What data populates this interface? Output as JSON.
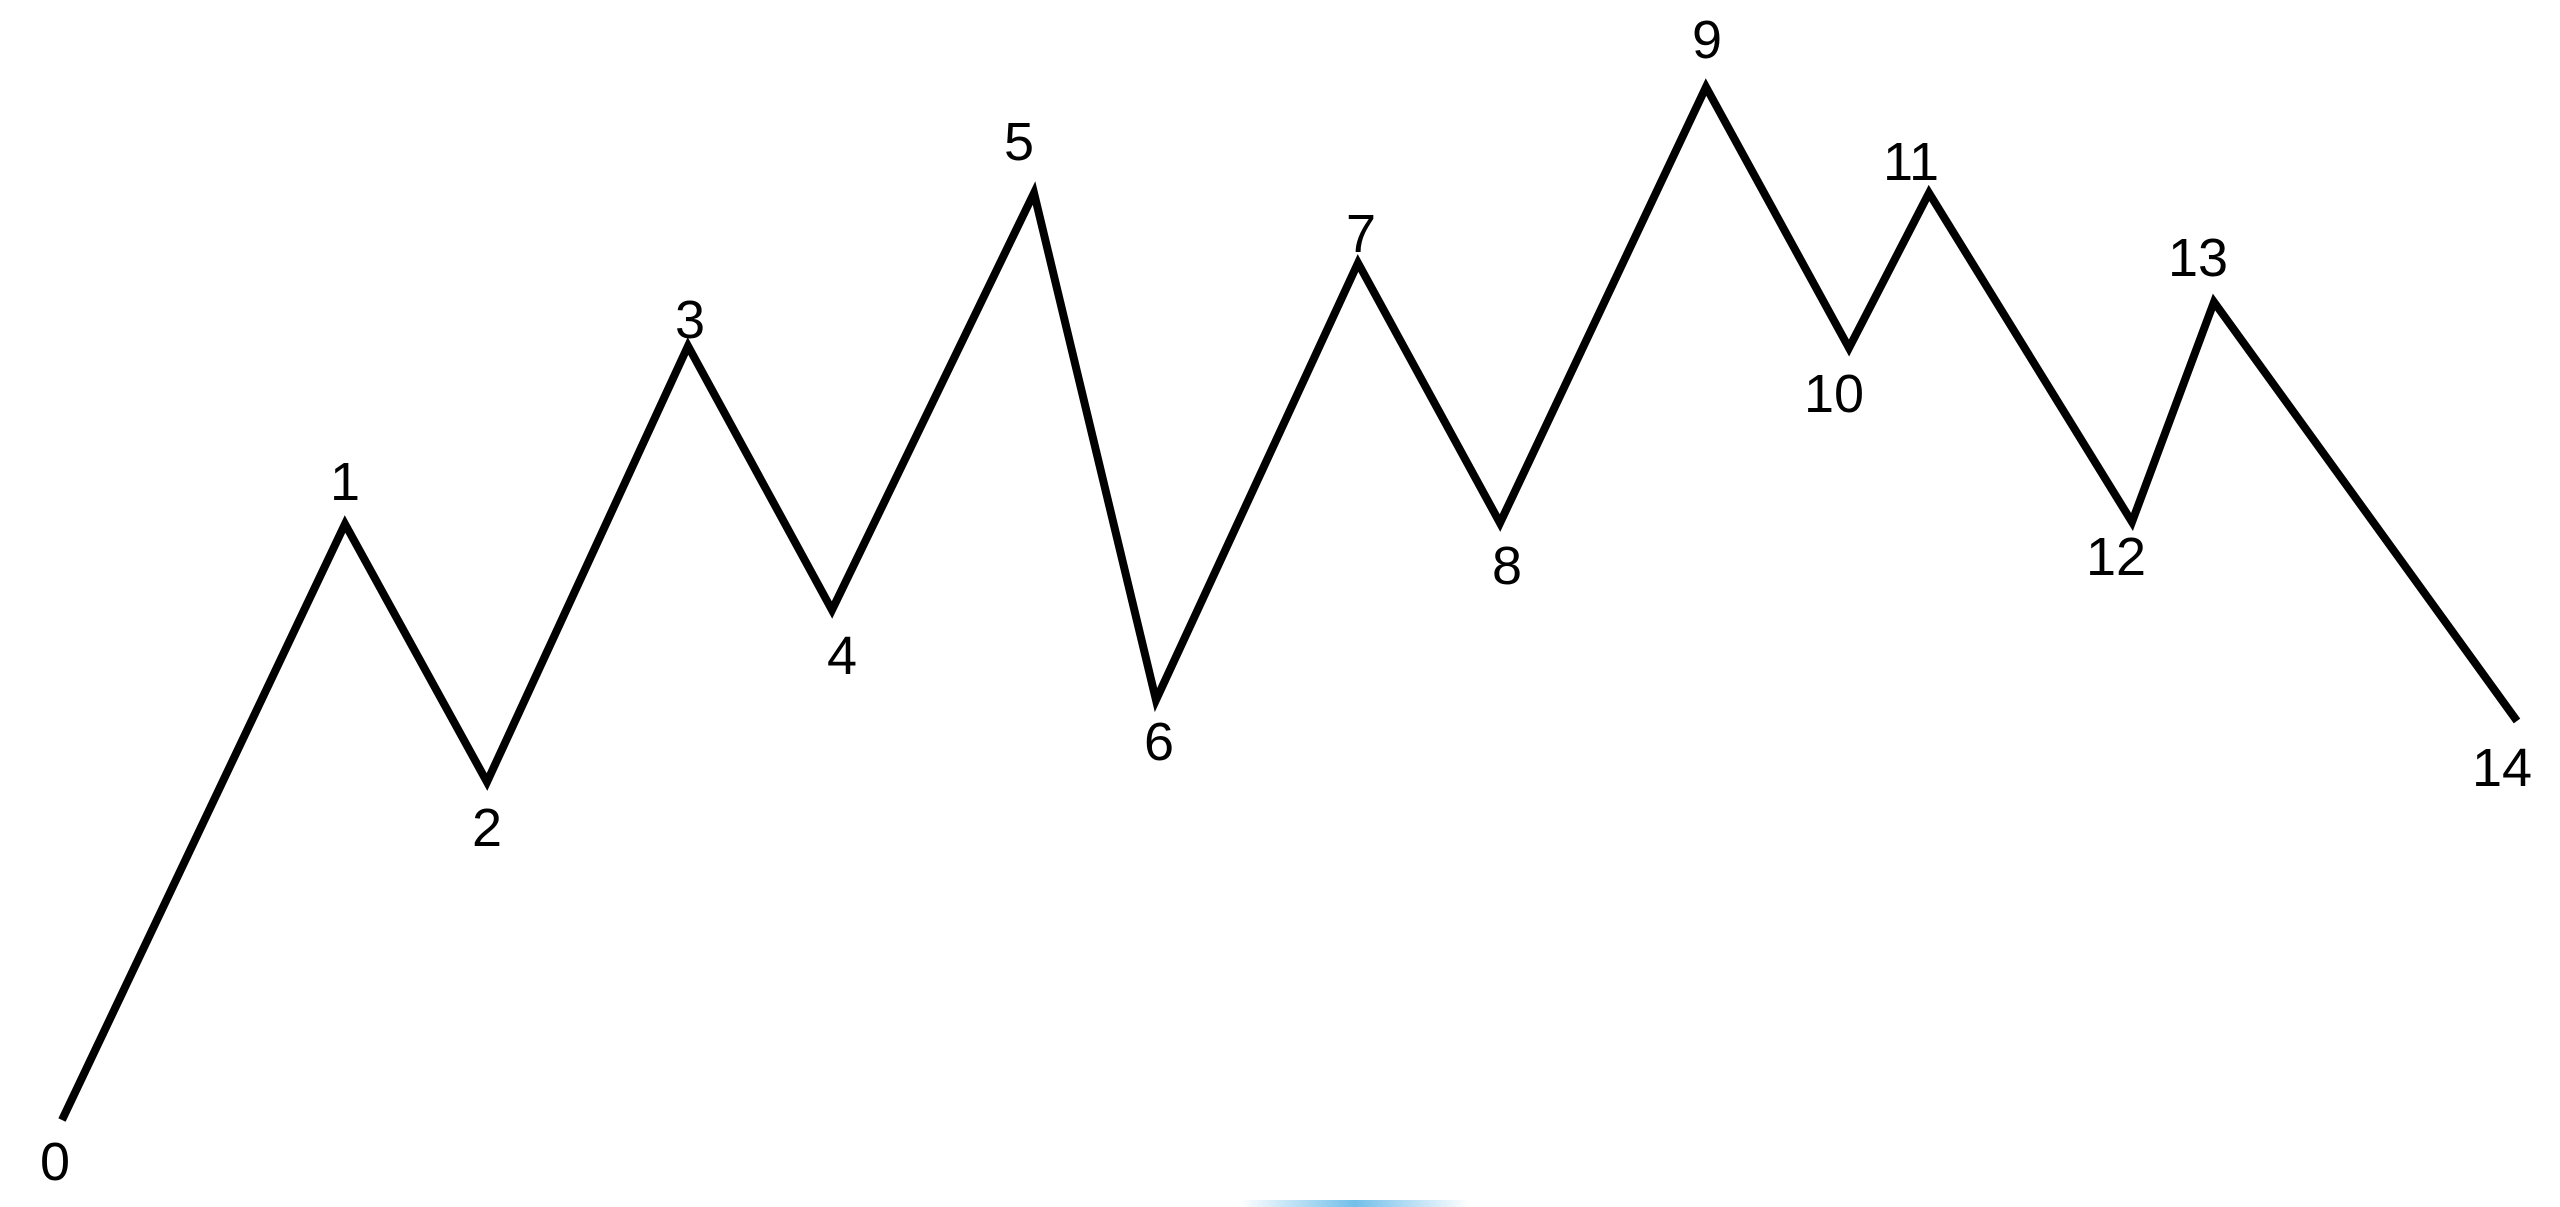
{
  "diagram": {
    "stroke_color": "#000000",
    "label_color": "#000000",
    "background_color": "#ffffff",
    "accent_glow_color": "#5ab4e6",
    "points": [
      {
        "label": "0"
      },
      {
        "label": "1"
      },
      {
        "label": "2"
      },
      {
        "label": "3"
      },
      {
        "label": "4"
      },
      {
        "label": "5"
      },
      {
        "label": "6"
      },
      {
        "label": "7"
      },
      {
        "label": "8"
      },
      {
        "label": "9"
      },
      {
        "label": "10"
      },
      {
        "label": "11"
      },
      {
        "label": "12"
      },
      {
        "label": "13"
      },
      {
        "label": "14"
      }
    ]
  }
}
